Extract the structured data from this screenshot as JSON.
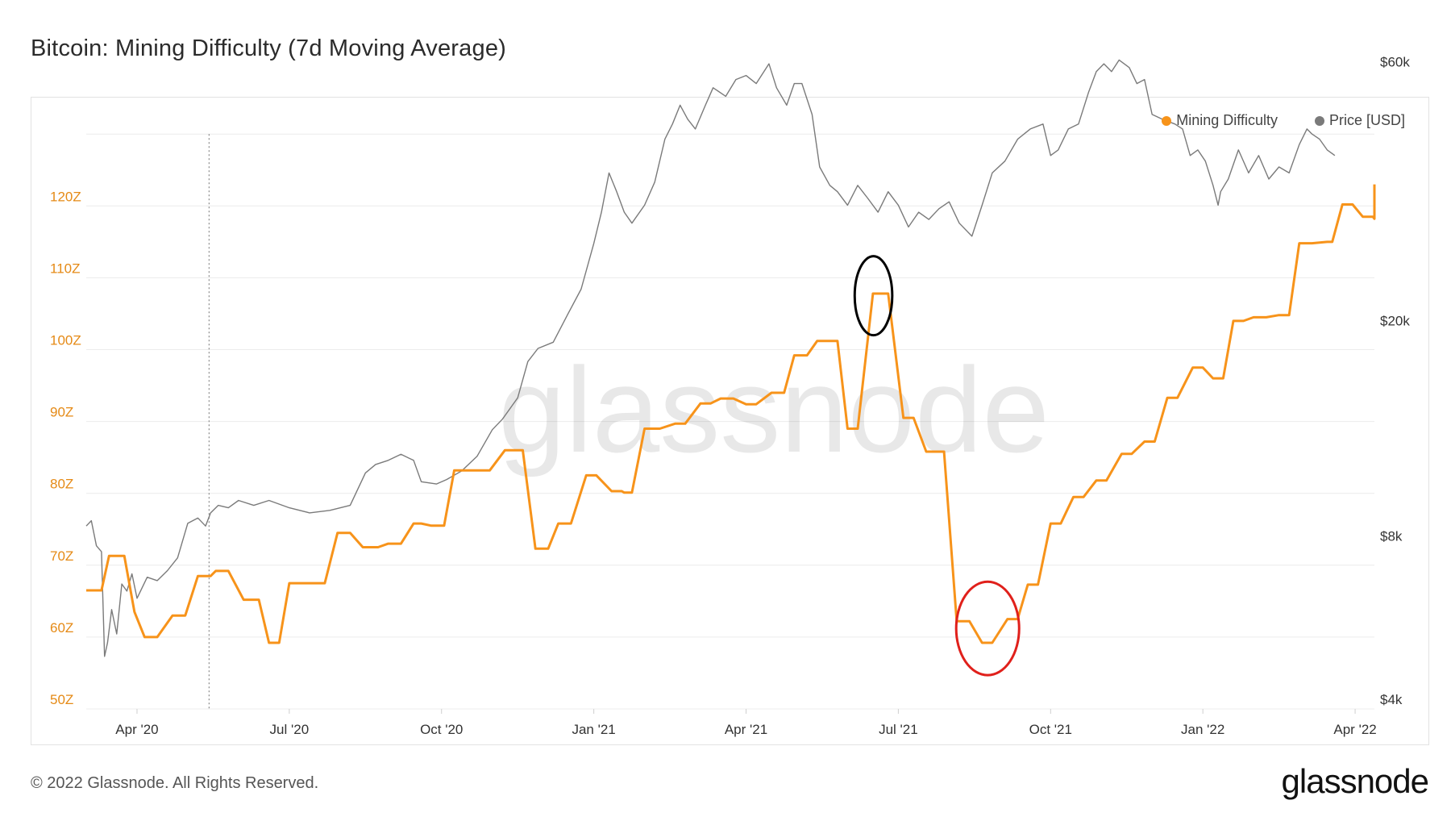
{
  "title": "Bitcoin: Mining Difficulty (7d Moving Average)",
  "footer": "© 2022 Glassnode. All Rights Reserved.",
  "brand": "glassnode",
  "watermark": "glassnode",
  "colors": {
    "difficulty": "#f7931a",
    "price": "#7a7a7a",
    "left_axis": "#e58a16",
    "grid": "#ececec",
    "annot_black": "#000000",
    "annot_red": "#e0201b"
  },
  "chart_data": {
    "type": "line",
    "title": "Bitcoin: Mining Difficulty (7d Moving Average)",
    "x_labels": [
      "Apr '20",
      "Jul '20",
      "Oct '20",
      "Jan '21",
      "Apr '21",
      "Jul '21",
      "Oct '21",
      "Jan '22",
      "Apr '22"
    ],
    "x_label_months": [
      3,
      6,
      9,
      12,
      15,
      18,
      21,
      24,
      27
    ],
    "x_range_months": [
      2.0,
      27.38
    ],
    "vline_month": 4.42,
    "left_axis": {
      "labels": [
        "50Z",
        "60Z",
        "70Z",
        "80Z",
        "90Z",
        "100Z",
        "110Z",
        "120Z"
      ],
      "values": [
        50,
        60,
        70,
        80,
        90,
        100,
        110,
        120
      ],
      "range": [
        50,
        130
      ]
    },
    "right_axis": {
      "labels": [
        "$4k",
        "$8k",
        "$20k",
        "$60k"
      ],
      "values": [
        4000,
        8000,
        20000,
        60000
      ],
      "scale": "log",
      "range": [
        4000,
        80000
      ]
    },
    "legend": [
      {
        "name": "Mining Difficulty",
        "color": "#f7931a"
      },
      {
        "name": "Price [USD]",
        "color": "#7a7a7a"
      }
    ],
    "series": [
      {
        "name": "Mining Difficulty",
        "axis": "left",
        "step": true,
        "points": [
          [
            2.0,
            66.5
          ],
          [
            2.3,
            66.5
          ],
          [
            2.45,
            71.3
          ],
          [
            2.75,
            71.3
          ],
          [
            2.95,
            63.5
          ],
          [
            3.15,
            60
          ],
          [
            3.4,
            60
          ],
          [
            3.7,
            63
          ],
          [
            3.95,
            63
          ],
          [
            4.2,
            68.5
          ],
          [
            4.45,
            68.5
          ],
          [
            4.55,
            69.2
          ],
          [
            4.8,
            69.2
          ],
          [
            5.1,
            65.2
          ],
          [
            5.4,
            65.2
          ],
          [
            5.6,
            59.2
          ],
          [
            5.8,
            59.2
          ],
          [
            6.0,
            67.5
          ],
          [
            6.7,
            67.5
          ],
          [
            6.95,
            74.5
          ],
          [
            7.2,
            74.5
          ],
          [
            7.45,
            72.5
          ],
          [
            7.75,
            72.5
          ],
          [
            7.95,
            73
          ],
          [
            8.2,
            73
          ],
          [
            8.45,
            75.8
          ],
          [
            8.6,
            75.8
          ],
          [
            8.8,
            75.5
          ],
          [
            9.05,
            75.5
          ],
          [
            9.25,
            83.2
          ],
          [
            9.95,
            83.2
          ],
          [
            10.25,
            86
          ],
          [
            10.6,
            86
          ],
          [
            10.85,
            72.3
          ],
          [
            11.1,
            72.3
          ],
          [
            11.3,
            75.8
          ],
          [
            11.55,
            75.8
          ],
          [
            11.85,
            82.5
          ],
          [
            12.05,
            82.5
          ],
          [
            12.35,
            80.3
          ],
          [
            12.55,
            80.3
          ],
          [
            12.6,
            80.1
          ],
          [
            12.75,
            80.1
          ],
          [
            13.0,
            89
          ],
          [
            13.3,
            89
          ],
          [
            13.6,
            89.7
          ],
          [
            13.8,
            89.7
          ],
          [
            14.1,
            92.5
          ],
          [
            14.3,
            92.5
          ],
          [
            14.5,
            93.2
          ],
          [
            14.75,
            93.2
          ],
          [
            15.0,
            92.4
          ],
          [
            15.2,
            92.4
          ],
          [
            15.5,
            94
          ],
          [
            15.75,
            94
          ],
          [
            15.95,
            99.2
          ],
          [
            16.2,
            99.2
          ],
          [
            16.4,
            101.2
          ],
          [
            16.8,
            101.2
          ],
          [
            17.0,
            89
          ],
          [
            17.2,
            89
          ],
          [
            17.5,
            107.8
          ],
          [
            17.8,
            107.8
          ],
          [
            18.1,
            90.5
          ],
          [
            18.3,
            90.5
          ],
          [
            18.55,
            85.8
          ],
          [
            18.9,
            85.8
          ],
          [
            19.15,
            62.2
          ],
          [
            19.4,
            62.2
          ],
          [
            19.65,
            59.2
          ],
          [
            19.85,
            59.2
          ],
          [
            20.15,
            62.5
          ],
          [
            20.35,
            62.5
          ],
          [
            20.55,
            67.3
          ],
          [
            20.75,
            67.3
          ],
          [
            21.0,
            75.8
          ],
          [
            21.2,
            75.8
          ],
          [
            21.45,
            79.5
          ],
          [
            21.65,
            79.5
          ],
          [
            21.9,
            81.8
          ],
          [
            22.1,
            81.8
          ],
          [
            22.4,
            85.5
          ],
          [
            22.6,
            85.5
          ],
          [
            22.85,
            87.2
          ],
          [
            23.05,
            87.2
          ],
          [
            23.3,
            93.3
          ],
          [
            23.5,
            93.3
          ],
          [
            23.8,
            97.5
          ],
          [
            24.0,
            97.5
          ],
          [
            24.2,
            96
          ],
          [
            24.4,
            96
          ],
          [
            24.6,
            104
          ],
          [
            24.8,
            104
          ],
          [
            25.0,
            104.5
          ],
          [
            25.25,
            104.5
          ],
          [
            25.5,
            104.8
          ],
          [
            25.7,
            104.8
          ],
          [
            25.9,
            114.8
          ],
          [
            26.15,
            114.8
          ],
          [
            26.45,
            115
          ],
          [
            26.55,
            115
          ],
          [
            26.75,
            120.2
          ],
          [
            26.95,
            120.2
          ],
          [
            27.15,
            118.5
          ],
          [
            27.35,
            118.5
          ],
          [
            27.55,
            118.2
          ],
          [
            27.75,
            118.2
          ],
          [
            28.0,
            118.2
          ],
          [
            28.15,
            123.0
          ],
          [
            28.3,
            123.0
          ]
        ]
      },
      {
        "name": "Price [USD]",
        "axis": "right",
        "step": false,
        "points": [
          [
            2.0,
            8700
          ],
          [
            2.1,
            8900
          ],
          [
            2.2,
            8000
          ],
          [
            2.3,
            7800
          ],
          [
            2.36,
            5000
          ],
          [
            2.42,
            5300
          ],
          [
            2.5,
            6100
          ],
          [
            2.6,
            5500
          ],
          [
            2.7,
            6800
          ],
          [
            2.8,
            6600
          ],
          [
            2.9,
            7100
          ],
          [
            3.0,
            6400
          ],
          [
            3.2,
            7000
          ],
          [
            3.4,
            6900
          ],
          [
            3.6,
            7200
          ],
          [
            3.8,
            7600
          ],
          [
            4.0,
            8800
          ],
          [
            4.2,
            9000
          ],
          [
            4.35,
            8700
          ],
          [
            4.45,
            9200
          ],
          [
            4.6,
            9500
          ],
          [
            4.8,
            9400
          ],
          [
            5.0,
            9700
          ],
          [
            5.3,
            9500
          ],
          [
            5.6,
            9700
          ],
          [
            6.0,
            9400
          ],
          [
            6.4,
            9200
          ],
          [
            6.8,
            9300
          ],
          [
            7.2,
            9500
          ],
          [
            7.5,
            10900
          ],
          [
            7.7,
            11300
          ],
          [
            7.95,
            11500
          ],
          [
            8.2,
            11800
          ],
          [
            8.45,
            11500
          ],
          [
            8.6,
            10500
          ],
          [
            8.9,
            10400
          ],
          [
            9.1,
            10600
          ],
          [
            9.4,
            11000
          ],
          [
            9.7,
            11700
          ],
          [
            10.0,
            13100
          ],
          [
            10.2,
            13700
          ],
          [
            10.5,
            15000
          ],
          [
            10.7,
            17500
          ],
          [
            10.9,
            18500
          ],
          [
            11.2,
            19000
          ],
          [
            11.5,
            21500
          ],
          [
            11.75,
            23800
          ],
          [
            12.0,
            28900
          ],
          [
            12.15,
            33000
          ],
          [
            12.3,
            39000
          ],
          [
            12.45,
            36000
          ],
          [
            12.6,
            33000
          ],
          [
            12.75,
            31500
          ],
          [
            13.0,
            34000
          ],
          [
            13.2,
            37500
          ],
          [
            13.4,
            45000
          ],
          [
            13.55,
            48000
          ],
          [
            13.7,
            52000
          ],
          [
            13.85,
            49000
          ],
          [
            14.0,
            47000
          ],
          [
            14.2,
            52000
          ],
          [
            14.35,
            56000
          ],
          [
            14.6,
            54000
          ],
          [
            14.8,
            58000
          ],
          [
            15.0,
            59000
          ],
          [
            15.2,
            57000
          ],
          [
            15.45,
            62000
          ],
          [
            15.6,
            56000
          ],
          [
            15.8,
            52000
          ],
          [
            15.95,
            57000
          ],
          [
            16.1,
            57000
          ],
          [
            16.3,
            50000
          ],
          [
            16.45,
            40000
          ],
          [
            16.65,
            37000
          ],
          [
            16.8,
            36000
          ],
          [
            17.0,
            34000
          ],
          [
            17.2,
            37000
          ],
          [
            17.4,
            35000
          ],
          [
            17.6,
            33000
          ],
          [
            17.8,
            36000
          ],
          [
            18.0,
            34000
          ],
          [
            18.2,
            31000
          ],
          [
            18.4,
            33000
          ],
          [
            18.6,
            32000
          ],
          [
            18.8,
            33500
          ],
          [
            19.0,
            34500
          ],
          [
            19.2,
            31500
          ],
          [
            19.45,
            29800
          ],
          [
            19.65,
            34000
          ],
          [
            19.85,
            39000
          ],
          [
            20.1,
            41000
          ],
          [
            20.35,
            45000
          ],
          [
            20.6,
            47000
          ],
          [
            20.85,
            48000
          ],
          [
            21.0,
            42000
          ],
          [
            21.15,
            43000
          ],
          [
            21.35,
            47000
          ],
          [
            21.55,
            48000
          ],
          [
            21.75,
            55000
          ],
          [
            21.9,
            60000
          ],
          [
            22.05,
            62000
          ],
          [
            22.2,
            60000
          ],
          [
            22.35,
            63000
          ],
          [
            22.55,
            61000
          ],
          [
            22.7,
            57000
          ],
          [
            22.85,
            58000
          ],
          [
            23.0,
            50000
          ],
          [
            23.2,
            49000
          ],
          [
            23.45,
            48000
          ],
          [
            23.6,
            47000
          ],
          [
            23.75,
            42000
          ],
          [
            23.9,
            43000
          ],
          [
            24.05,
            41000
          ],
          [
            24.2,
            37000
          ],
          [
            24.3,
            34000
          ],
          [
            24.35,
            36000
          ],
          [
            24.5,
            38000
          ],
          [
            24.7,
            43000
          ],
          [
            24.9,
            39000
          ],
          [
            25.1,
            42000
          ],
          [
            25.3,
            38000
          ],
          [
            25.5,
            40000
          ],
          [
            25.7,
            39000
          ],
          [
            25.9,
            44000
          ],
          [
            26.05,
            47000
          ],
          [
            26.15,
            46000
          ],
          [
            26.3,
            45000
          ],
          [
            26.45,
            43000
          ],
          [
            26.6,
            42000
          ]
        ]
      }
    ],
    "annotations": [
      {
        "shape": "ellipse",
        "color": "black",
        "center": [
          17.51,
          107.5
        ],
        "radius": [
          0.37,
          5.5
        ]
      },
      {
        "shape": "ellipse",
        "color": "red",
        "center": [
          19.76,
          61.2
        ],
        "radius": [
          0.62,
          6.5
        ]
      }
    ]
  }
}
